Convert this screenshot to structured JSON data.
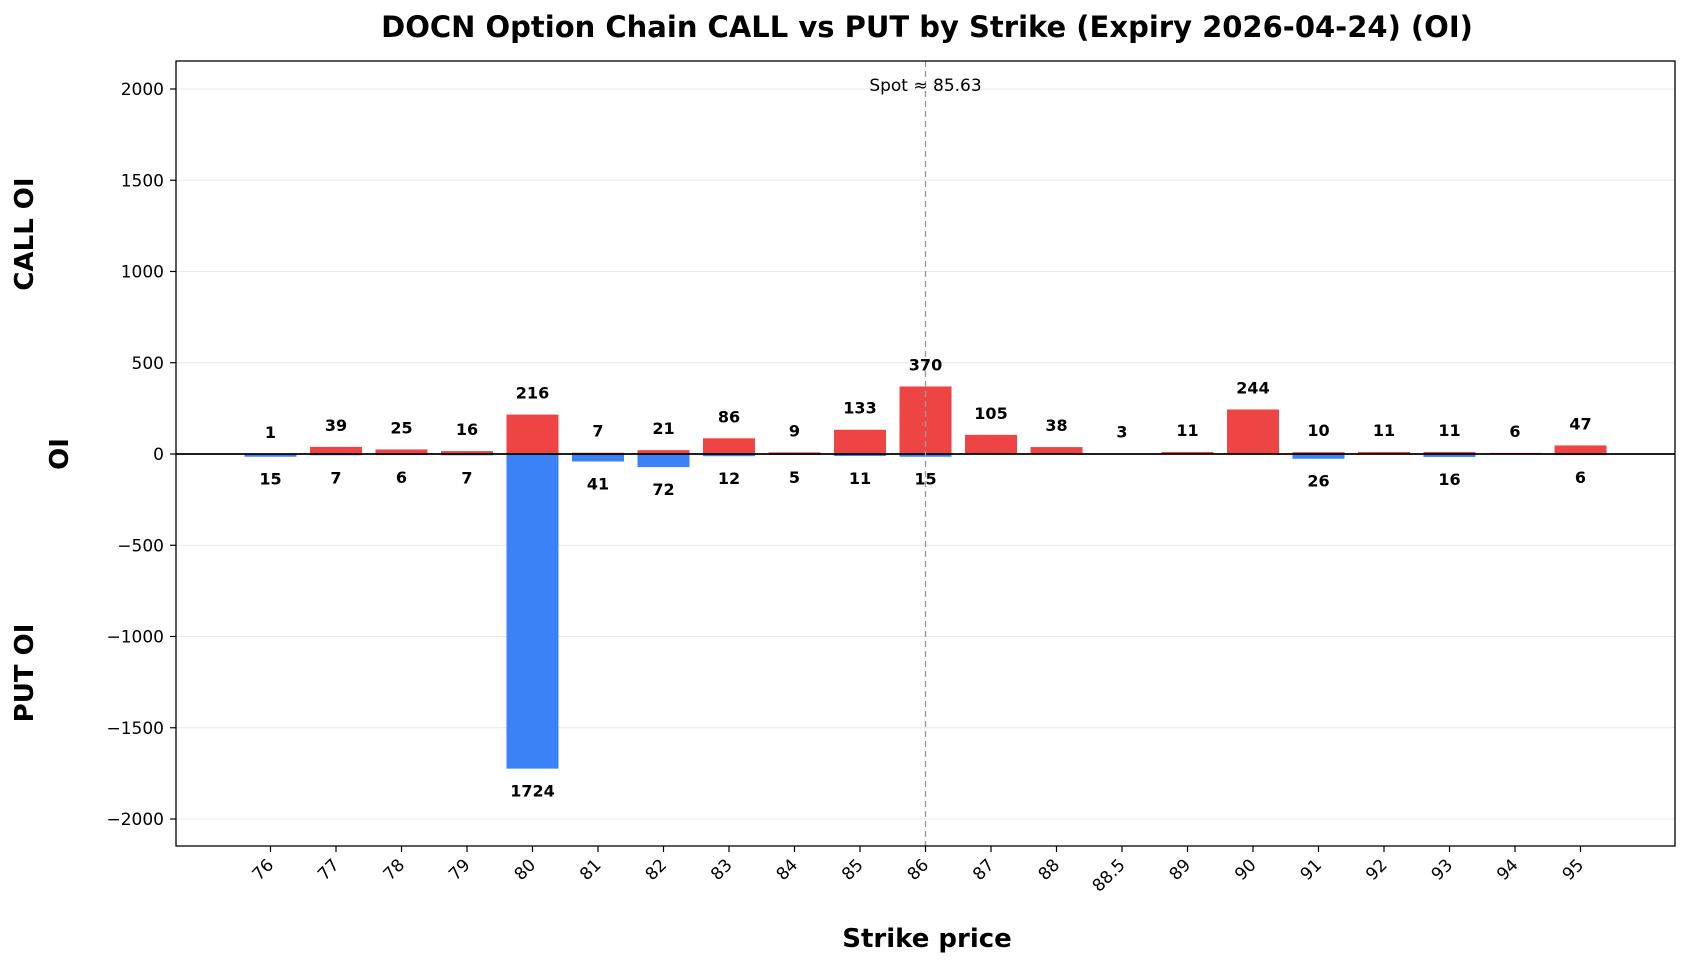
{
  "chart_data": {
    "type": "bar",
    "title": "DOCN Option Chain CALL vs PUT by Strike (Expiry 2026-04-24) (OI)",
    "xlabel": "Strike price",
    "ylabel": "OI",
    "upper_label": "CALL OI",
    "lower_label": "PUT OI",
    "spot_label": "Spot ≈ 85.63",
    "spot_value": 85.63,
    "categories": [
      "76",
      "77",
      "78",
      "79",
      "80",
      "81",
      "82",
      "83",
      "84",
      "85",
      "86",
      "87",
      "88",
      "88.5",
      "89",
      "90",
      "91",
      "92",
      "93",
      "94",
      "95"
    ],
    "series": [
      {
        "name": "CALL",
        "values": [
          1,
          39,
          25,
          16,
          216,
          7,
          21,
          86,
          9,
          133,
          370,
          105,
          38,
          3,
          11,
          244,
          10,
          11,
          11,
          6,
          47
        ]
      },
      {
        "name": "PUT",
        "values": [
          15,
          7,
          6,
          7,
          1724,
          41,
          72,
          12,
          5,
          11,
          15,
          0,
          0,
          0,
          0,
          0,
          26,
          0,
          16,
          0,
          6
        ]
      }
    ],
    "call_labels": [
      "1",
      "39",
      "25",
      "16",
      "216",
      "7",
      "21",
      "86",
      "9",
      "133",
      "370",
      "105",
      "38",
      "3",
      "11",
      "244",
      "10",
      "11",
      "11",
      "6",
      "47"
    ],
    "put_labels": [
      "15",
      "7",
      "6",
      "7",
      "1724",
      "41",
      "72",
      "12",
      "5",
      "11",
      "15",
      "",
      "",
      "",
      "",
      "",
      "26",
      "",
      "16",
      "",
      "6"
    ],
    "ylim": [
      -2150,
      2150
    ],
    "yticks": [
      2000,
      1500,
      1000,
      500,
      0,
      -500,
      -1000,
      -1500,
      -2000
    ],
    "ytick_labels": [
      "2000",
      "1500",
      "1000",
      "500",
      "0",
      "−500",
      "−1000",
      "−1500",
      "−2000"
    ],
    "grid": "horizontal",
    "colors": {
      "call": "#ef4444",
      "put": "#3b82f6",
      "spot_line": "#999999",
      "zero_line": "#000000"
    }
  }
}
